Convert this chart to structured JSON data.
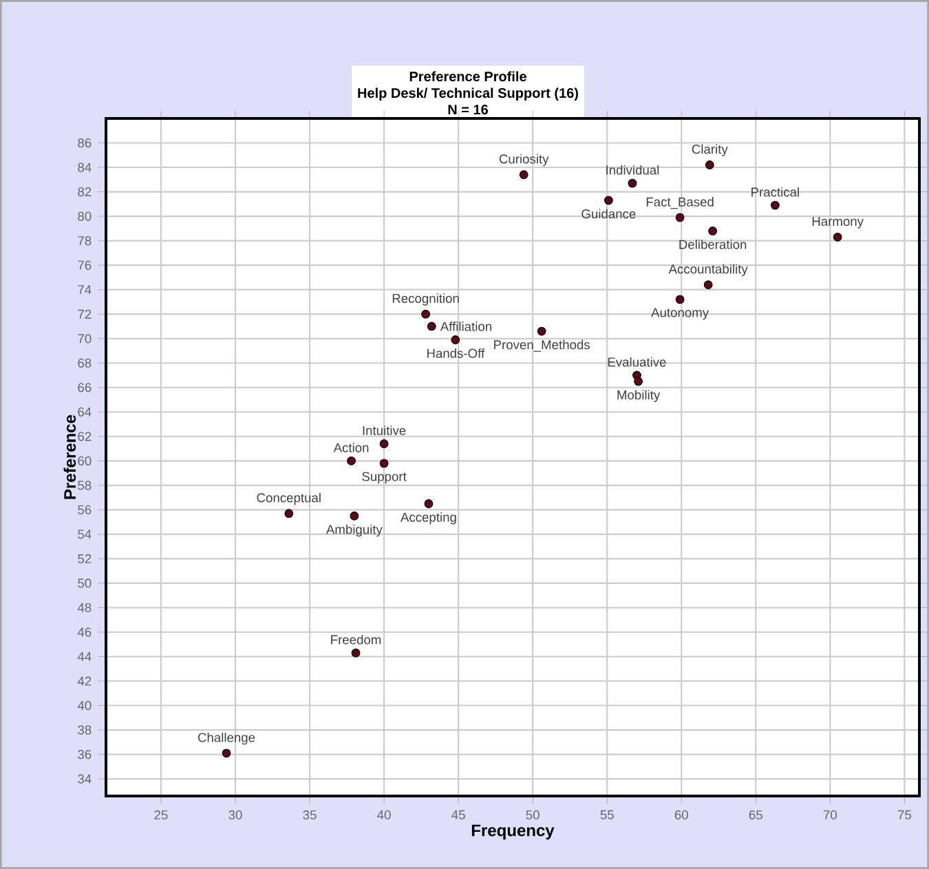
{
  "chart_data": {
    "type": "scatter",
    "title": "Preference Profile",
    "subtitle": "Help Desk/ Technical Support (16)",
    "xlabel": "Frequency",
    "ylabel": "Preference",
    "x": [
      42.8,
      43.2,
      44.8,
      40.0,
      37.8,
      40.0,
      49.4,
      56.7,
      55.1,
      61.9,
      59.9,
      62.1,
      66.3,
      70.5,
      61.8,
      59.9,
      50.6,
      57.0,
      57.1,
      33.6,
      38.0,
      43.0,
      38.1,
      29.4
    ],
    "values": [
      72.0,
      71.0,
      69.9,
      61.4,
      60.0,
      59.8,
      83.4,
      82.7,
      81.3,
      84.2,
      79.9,
      78.8,
      80.9,
      78.3,
      74.4,
      73.2,
      70.6,
      67.0,
      66.5,
      55.7,
      55.5,
      56.5,
      44.3,
      36.1
    ],
    "color": "#5a0a14",
    "marker": "circle",
    "grid": true,
    "xlim": [
      21.3,
      76
    ],
    "ylim": [
      32.6,
      88
    ],
    "xticks": [
      25,
      30,
      35,
      40,
      45,
      50,
      55,
      60,
      65,
      70,
      75
    ],
    "yticks": [
      34,
      36,
      38,
      40,
      42,
      44,
      46,
      48,
      50,
      52,
      54,
      56,
      58,
      60,
      62,
      64,
      66,
      68,
      70,
      72,
      74,
      76,
      78,
      80,
      82,
      84,
      86
    ],
    "annotations": [
      "N = 16",
      {
        "text": "Recognition",
        "x": 42.8,
        "y": 72.0
      },
      {
        "text": "Affiliation",
        "x": 43.2,
        "y": 71.0
      },
      {
        "text": "Hands-Off",
        "x": 44.8,
        "y": 69.9
      },
      {
        "text": "Intuitive",
        "x": 40.0,
        "y": 61.4
      },
      {
        "text": "Action",
        "x": 37.8,
        "y": 60.0
      },
      {
        "text": "Support",
        "x": 40.0,
        "y": 59.8
      },
      {
        "text": "Curiosity",
        "x": 49.4,
        "y": 83.4
      },
      {
        "text": "Individual",
        "x": 56.7,
        "y": 82.7
      },
      {
        "text": "Guidance",
        "x": 55.1,
        "y": 81.3
      },
      {
        "text": "Clarity",
        "x": 61.9,
        "y": 84.2
      },
      {
        "text": "Fact_Based",
        "x": 59.9,
        "y": 79.9
      },
      {
        "text": "Deliberation",
        "x": 62.1,
        "y": 78.8
      },
      {
        "text": "Practical",
        "x": 66.3,
        "y": 80.9
      },
      {
        "text": "Harmony",
        "x": 70.5,
        "y": 78.3
      },
      {
        "text": "Accountability",
        "x": 61.8,
        "y": 74.4
      },
      {
        "text": "Autonomy",
        "x": 59.9,
        "y": 73.2
      },
      {
        "text": "Proven_Methods",
        "x": 50.6,
        "y": 70.6
      },
      {
        "text": "Evaluative",
        "x": 57.0,
        "y": 67.0
      },
      {
        "text": "Mobility",
        "x": 57.1,
        "y": 66.5
      },
      {
        "text": "Conceptual",
        "x": 33.6,
        "y": 55.7
      },
      {
        "text": "Ambiguity",
        "x": 38.0,
        "y": 55.5
      },
      {
        "text": "Accepting",
        "x": 43.0,
        "y": 56.5
      },
      {
        "text": "Freedom",
        "x": 38.1,
        "y": 44.3
      },
      {
        "text": "Challenge",
        "x": 29.4,
        "y": 36.1
      }
    ]
  }
}
